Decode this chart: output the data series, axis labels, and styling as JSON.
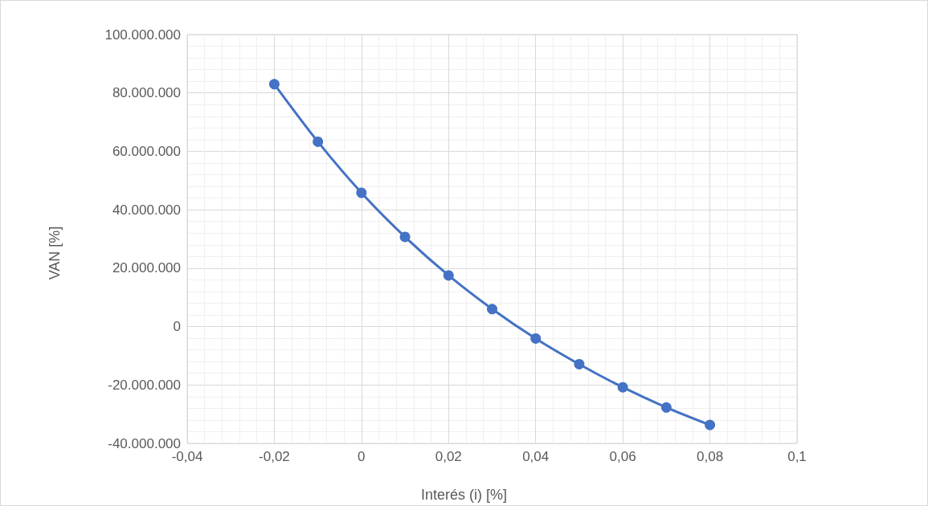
{
  "chart_data": {
    "type": "line",
    "xlabel": "Interés (i) [%]",
    "ylabel": "VAN [%]",
    "x": [
      -0.02,
      -0.01,
      0,
      0.01,
      0.02,
      0.03,
      0.04,
      0.05,
      0.06,
      0.07,
      0.08
    ],
    "series": [
      {
        "color": "#4472c4",
        "values": [
          83000000,
          63300000,
          45800000,
          30700000,
          17500000,
          6000000,
          -4100000,
          -12900000,
          -20800000,
          -27700000,
          -33700000
        ]
      }
    ],
    "xlim": [
      -0.04,
      0.1
    ],
    "xticks": [
      {
        "value": -0.04,
        "label": "-0,04"
      },
      {
        "value": -0.02,
        "label": "-0,02"
      },
      0,
      {
        "value": 0.02,
        "label": "0,02"
      },
      {
        "value": 0.04,
        "label": "0,04"
      },
      {
        "value": 0.06,
        "label": "0,06"
      },
      {
        "value": 0.08,
        "label": "0,08"
      },
      {
        "value": 0.1,
        "label": "0,1"
      }
    ],
    "ylim": [
      -40000000,
      100000000
    ],
    "yticks": [
      {
        "value": -40000000,
        "label": "-40.000.000"
      },
      {
        "value": -20000000,
        "label": "-20.000.000"
      },
      0,
      {
        "value": 20000000,
        "label": "20.000.000"
      },
      {
        "value": 40000000,
        "label": "40.000.000"
      },
      {
        "value": 60000000,
        "label": "60.000.000"
      },
      {
        "value": 80000000,
        "label": "80.000.000"
      },
      {
        "value": 100000000,
        "label": "100.000.000"
      }
    ],
    "grid": true,
    "marker": "circle",
    "line_style": "solid"
  }
}
